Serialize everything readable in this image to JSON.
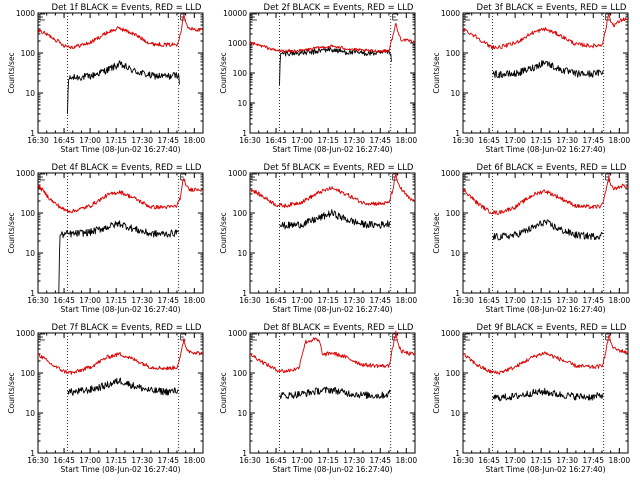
{
  "figure": {
    "layout": "3x3 grid",
    "subtitle_prefix": "Start Time",
    "start_time": "08-Jun-02 16:27:40"
  },
  "colors": {
    "events": "#000000",
    "lld": "#dd0000",
    "axes": "#000000"
  },
  "chart_data": [
    {
      "type": "line",
      "title": "Det 1f BLACK = Events, RED = LLD",
      "xlabel": "Start Time (08-Jun-02 16:27:40)",
      "ylabel": "Counts/sec",
      "yscale": "log",
      "ylim": [
        1,
        1000
      ],
      "ytick_labels": [
        "1",
        "10",
        "100",
        "1000"
      ],
      "x_unit": "minutes after 16:30",
      "xlim": [
        0,
        95
      ],
      "xtick_values": [
        0,
        15,
        30,
        45,
        60,
        75,
        90
      ],
      "xtick_labels": [
        "16:30",
        "16:45",
        "17:00",
        "17:15",
        "17:30",
        "17:45",
        "18:00"
      ],
      "vlines": [
        17,
        81
      ],
      "series": [
        {
          "name": "Events",
          "color": "#000000",
          "x": [
            17,
            17.5,
            20,
            30,
            40,
            47,
            55,
            65,
            75,
            80,
            81,
            81.5
          ],
          "y": [
            3,
            22,
            24,
            26,
            38,
            52,
            36,
            27,
            26,
            28,
            30,
            14
          ]
        },
        {
          "name": "LLD",
          "color": "#dd0000",
          "x": [
            0,
            8,
            15,
            20,
            30,
            40,
            47,
            55,
            65,
            75,
            80,
            82,
            84,
            85,
            87,
            92,
            95
          ],
          "y": [
            380,
            250,
            155,
            140,
            180,
            330,
            420,
            300,
            170,
            160,
            165,
            300,
            1000,
            600,
            400,
            380,
            390
          ]
        }
      ]
    },
    {
      "type": "line",
      "title": "Det 2f BLACK = Events, RED = LLD",
      "xlabel": "Start Time (08-Jun-02 16:27:40)",
      "ylabel": "Counts/sec",
      "yscale": "log",
      "ylim": [
        1,
        10000
      ],
      "ytick_labels": [
        "1",
        "10",
        "100",
        "1000",
        "10000"
      ],
      "x_unit": "minutes after 16:30",
      "xlim": [
        0,
        95
      ],
      "xtick_values": [
        0,
        15,
        30,
        45,
        60,
        75,
        90
      ],
      "xtick_labels": [
        "16:30",
        "16:45",
        "17:00",
        "17:15",
        "17:30",
        "17:45",
        "18:00"
      ],
      "vlines": [
        17,
        81
      ],
      "series": [
        {
          "name": "Events",
          "color": "#000000",
          "x": [
            17,
            17.5,
            25,
            35,
            45,
            55,
            65,
            75,
            81,
            81.5
          ],
          "y": [
            40,
            450,
            460,
            480,
            620,
            500,
            460,
            460,
            470,
            200
          ]
        },
        {
          "name": "LLD",
          "color": "#dd0000",
          "x": [
            0,
            8,
            15,
            20,
            30,
            40,
            47,
            55,
            65,
            75,
            80,
            82,
            84,
            85,
            87,
            95
          ],
          "y": [
            1000,
            760,
            560,
            530,
            560,
            700,
            780,
            660,
            560,
            540,
            560,
            1500,
            4500,
            2500,
            1300,
            1100
          ]
        }
      ]
    },
    {
      "type": "line",
      "title": "Det 3f BLACK = Events, RED = LLD",
      "xlabel": "Start Time (08-Jun-02 16:27:40)",
      "ylabel": "Counts/sec",
      "yscale": "log",
      "ylim": [
        1,
        1000
      ],
      "ytick_labels": [
        "1",
        "10",
        "100",
        "1000"
      ],
      "x_unit": "minutes after 16:30",
      "xlim": [
        0,
        95
      ],
      "xtick_values": [
        0,
        15,
        30,
        45,
        60,
        75,
        90
      ],
      "xtick_labels": [
        "16:30",
        "16:45",
        "17:00",
        "17:15",
        "17:30",
        "17:45",
        "18:00"
      ],
      "vlines": [
        17,
        81
      ],
      "series": [
        {
          "name": "Events",
          "color": "#000000",
          "x": [
            17,
            20,
            30,
            40,
            47,
            55,
            65,
            75,
            80,
            81
          ],
          "y": [
            30,
            29,
            30,
            42,
            60,
            40,
            30,
            30,
            33,
            38
          ]
        },
        {
          "name": "LLD",
          "color": "#dd0000",
          "x": [
            0,
            8,
            15,
            20,
            30,
            40,
            47,
            55,
            65,
            75,
            80,
            82,
            84,
            85,
            87,
            92,
            95
          ],
          "y": [
            400,
            250,
            150,
            135,
            175,
            320,
            400,
            290,
            165,
            150,
            160,
            350,
            1000,
            600,
            500,
            700,
            700
          ]
        }
      ]
    },
    {
      "type": "line",
      "title": "Det 4f BLACK = Events, RED = LLD",
      "xlabel": "Start Time (08-Jun-02 16:27:40)",
      "ylabel": "Counts/sec",
      "yscale": "log",
      "ylim": [
        1,
        1000
      ],
      "ytick_labels": [
        "1",
        "10",
        "100",
        "1000"
      ],
      "x_unit": "minutes after 16:30",
      "xlim": [
        0,
        95
      ],
      "xtick_values": [
        0,
        15,
        30,
        45,
        60,
        75,
        90
      ],
      "xtick_labels": [
        "16:30",
        "16:45",
        "17:00",
        "17:15",
        "17:30",
        "17:45",
        "18:00"
      ],
      "vlines": [
        17,
        81
      ],
      "series": [
        {
          "name": "Events",
          "color": "#000000",
          "x": [
            12,
            12.5,
            17,
            20,
            30,
            40,
            47,
            55,
            65,
            75,
            80,
            81
          ],
          "y": [
            1,
            28,
            30,
            30,
            33,
            45,
            55,
            40,
            30,
            30,
            32,
            35
          ]
        },
        {
          "name": "LLD",
          "color": "#dd0000",
          "x": [
            0,
            8,
            15,
            20,
            30,
            40,
            47,
            55,
            65,
            75,
            80,
            82,
            84,
            85,
            87,
            92,
            95
          ],
          "y": [
            500,
            200,
            120,
            110,
            150,
            280,
            340,
            240,
            140,
            140,
            150,
            250,
            800,
            500,
            380,
            400,
            380
          ]
        }
      ]
    },
    {
      "type": "line",
      "title": "Det 5f BLACK = Events, RED = LLD",
      "xlabel": "Start Time (08-Jun-02 16:27:40)",
      "ylabel": "Counts/sec",
      "yscale": "log",
      "ylim": [
        1,
        1000
      ],
      "ytick_labels": [
        "1",
        "10",
        "100",
        "1000"
      ],
      "x_unit": "minutes after 16:30",
      "xlim": [
        0,
        95
      ],
      "xtick_values": [
        0,
        15,
        30,
        45,
        60,
        75,
        90
      ],
      "xtick_labels": [
        "16:30",
        "16:45",
        "17:00",
        "17:15",
        "17:30",
        "17:45",
        "18:00"
      ],
      "vlines": [
        17,
        81
      ],
      "series": [
        {
          "name": "Events",
          "color": "#000000",
          "x": [
            17,
            20,
            30,
            40,
            47,
            55,
            65,
            75,
            80,
            81
          ],
          "y": [
            50,
            48,
            52,
            75,
            100,
            70,
            52,
            50,
            55,
            65
          ]
        },
        {
          "name": "LLD",
          "color": "#dd0000",
          "x": [
            0,
            8,
            15,
            20,
            30,
            40,
            47,
            55,
            65,
            75,
            80,
            82,
            84,
            85,
            87,
            92,
            95
          ],
          "y": [
            400,
            250,
            160,
            150,
            190,
            330,
            420,
            300,
            180,
            170,
            180,
            350,
            900,
            600,
            400,
            220,
            200
          ]
        }
      ]
    },
    {
      "type": "line",
      "title": "Det 6f BLACK = Events, RED = LLD",
      "xlabel": "Start Time (08-Jun-02 16:27:40)",
      "ylabel": "Counts/sec",
      "yscale": "log",
      "ylim": [
        1,
        1000
      ],
      "ytick_labels": [
        "1",
        "10",
        "100",
        "1000"
      ],
      "x_unit": "minutes after 16:30",
      "xlim": [
        0,
        95
      ],
      "xtick_values": [
        0,
        15,
        30,
        45,
        60,
        75,
        90
      ],
      "xtick_labels": [
        "16:30",
        "16:45",
        "17:00",
        "17:15",
        "17:30",
        "17:45",
        "18:00"
      ],
      "vlines": [
        17,
        81
      ],
      "series": [
        {
          "name": "Events",
          "color": "#000000",
          "x": [
            17,
            20,
            30,
            40,
            47,
            55,
            65,
            75,
            80,
            81
          ],
          "y": [
            26,
            25,
            28,
            42,
            60,
            40,
            28,
            26,
            28,
            32
          ]
        },
        {
          "name": "LLD",
          "color": "#dd0000",
          "x": [
            0,
            8,
            15,
            20,
            30,
            40,
            47,
            55,
            65,
            75,
            80,
            82,
            84,
            85,
            87,
            92,
            95
          ],
          "y": [
            400,
            180,
            110,
            100,
            140,
            280,
            360,
            250,
            150,
            140,
            150,
            300,
            800,
            500,
            400,
            480,
            450
          ]
        }
      ]
    },
    {
      "type": "line",
      "title": "Det 7f BLACK = Events, RED = LLD",
      "xlabel": "Start Time (08-Jun-02 16:27:40)",
      "ylabel": "Counts/sec",
      "yscale": "log",
      "ylim": [
        1,
        1000
      ],
      "ytick_labels": [
        "1",
        "10",
        "100",
        "1000"
      ],
      "x_unit": "minutes after 16:30",
      "xlim": [
        0,
        95
      ],
      "xtick_values": [
        0,
        15,
        30,
        45,
        60,
        75,
        90
      ],
      "xtick_labels": [
        "16:30",
        "16:45",
        "17:00",
        "17:15",
        "17:30",
        "17:45",
        "18:00"
      ],
      "vlines": [
        17,
        81
      ],
      "series": [
        {
          "name": "Events",
          "color": "#000000",
          "x": [
            17,
            20,
            30,
            40,
            47,
            55,
            65,
            75,
            80,
            81
          ],
          "y": [
            35,
            33,
            38,
            50,
            65,
            48,
            36,
            34,
            36,
            40
          ]
        },
        {
          "name": "LLD",
          "color": "#dd0000",
          "x": [
            0,
            8,
            15,
            20,
            30,
            40,
            47,
            55,
            65,
            75,
            80,
            82,
            84,
            85,
            87,
            92,
            95
          ],
          "y": [
            300,
            160,
            110,
            100,
            140,
            250,
            300,
            220,
            140,
            130,
            140,
            250,
            700,
            450,
            350,
            320,
            300
          ]
        }
      ]
    },
    {
      "type": "line",
      "title": "Det 8f BLACK = Events, RED = LLD",
      "xlabel": "Start Time (08-Jun-02 16:27:40)",
      "ylabel": "Counts/sec",
      "yscale": "log",
      "ylim": [
        1,
        1000
      ],
      "ytick_labels": [
        "1",
        "10",
        "100",
        "1000"
      ],
      "x_unit": "minutes after 16:30",
      "xlim": [
        0,
        95
      ],
      "xtick_values": [
        0,
        15,
        30,
        45,
        60,
        75,
        90
      ],
      "xtick_labels": [
        "16:30",
        "16:45",
        "17:00",
        "17:15",
        "17:30",
        "17:45",
        "18:00"
      ],
      "vlines": [
        17,
        81
      ],
      "series": [
        {
          "name": "Events",
          "color": "#000000",
          "x": [
            17,
            20,
            30,
            40,
            47,
            55,
            65,
            75,
            80,
            81
          ],
          "y": [
            28,
            27,
            30,
            36,
            38,
            32,
            28,
            27,
            30,
            35
          ]
        },
        {
          "name": "LLD",
          "color": "#dd0000",
          "x": [
            0,
            8,
            15,
            20,
            28,
            30,
            32,
            38,
            40,
            42,
            47,
            55,
            65,
            75,
            80,
            82,
            84,
            85,
            87,
            92,
            95
          ],
          "y": [
            300,
            180,
            120,
            110,
            130,
            300,
            600,
            700,
            600,
            280,
            320,
            250,
            160,
            150,
            150,
            400,
            1000,
            600,
            350,
            300,
            300
          ]
        }
      ]
    },
    {
      "type": "line",
      "title": "Det 9f BLACK = Events, RED = LLD",
      "xlabel": "Start Time (08-Jun-02 16:27:40)",
      "ylabel": "Counts/sec",
      "yscale": "log",
      "ylim": [
        1,
        1000
      ],
      "ytick_labels": [
        "1",
        "10",
        "100",
        "1000"
      ],
      "x_unit": "minutes after 16:30",
      "xlim": [
        0,
        95
      ],
      "xtick_values": [
        0,
        15,
        30,
        45,
        60,
        75,
        90
      ],
      "xtick_labels": [
        "16:30",
        "16:45",
        "17:00",
        "17:15",
        "17:30",
        "17:45",
        "18:00"
      ],
      "vlines": [
        17,
        81
      ],
      "series": [
        {
          "name": "Events",
          "color": "#000000",
          "x": [
            17,
            20,
            30,
            40,
            47,
            55,
            65,
            75,
            80,
            81
          ],
          "y": [
            25,
            24,
            26,
            32,
            34,
            29,
            26,
            25,
            28,
            32
          ]
        },
        {
          "name": "LLD",
          "color": "#dd0000",
          "x": [
            0,
            8,
            15,
            20,
            30,
            40,
            47,
            55,
            65,
            75,
            80,
            82,
            84,
            85,
            87,
            92,
            95
          ],
          "y": [
            300,
            160,
            110,
            100,
            140,
            250,
            320,
            230,
            150,
            140,
            150,
            300,
            900,
            600,
            400,
            350,
            330
          ]
        }
      ]
    }
  ]
}
